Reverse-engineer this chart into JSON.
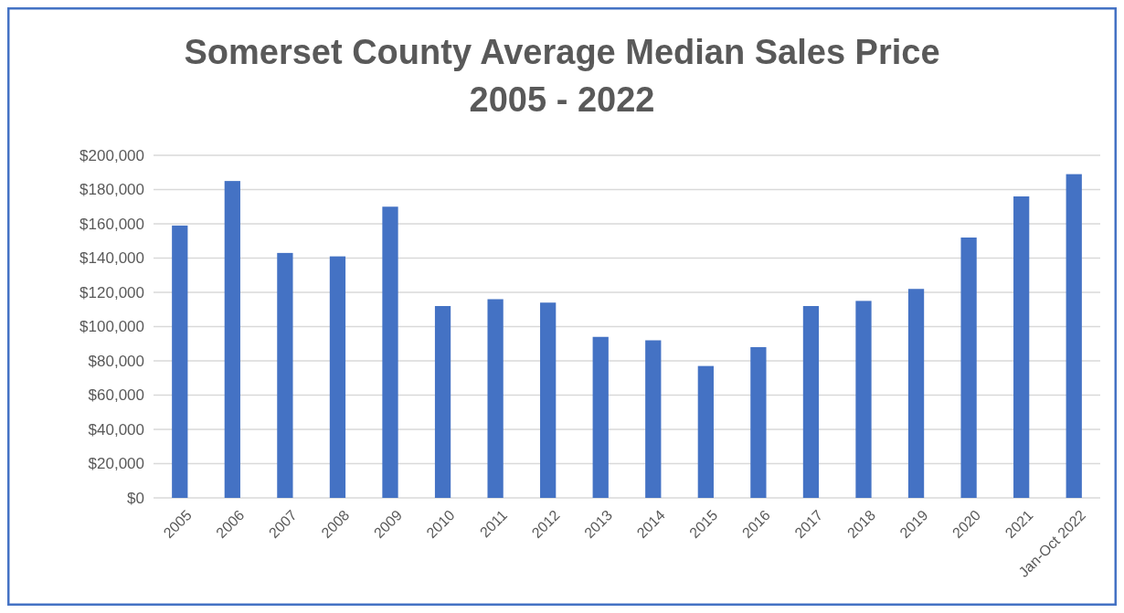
{
  "chart_data": {
    "type": "bar",
    "title": "Somerset County Average Median Sales Price\n2005 - 2022",
    "categories": [
      "2005",
      "2006",
      "2007",
      "2008",
      "2009",
      "2010",
      "2011",
      "2012",
      "2013",
      "2014",
      "2015",
      "2016",
      "2017",
      "2018",
      "2019",
      "2020",
      "2021",
      "Jan-Oct 2022"
    ],
    "values": [
      159000,
      185000,
      143000,
      141000,
      170000,
      112000,
      116000,
      114000,
      94000,
      92000,
      77000,
      88000,
      112000,
      115000,
      122000,
      152000,
      176000,
      189000
    ],
    "color": "#4472c4",
    "ylim": [
      0,
      200000
    ],
    "yticks": [
      {
        "value": 0,
        "label": "$0"
      },
      {
        "value": 20000,
        "label": "$20,000"
      },
      {
        "value": 40000,
        "label": "$40,000"
      },
      {
        "value": 60000,
        "label": "$60,000"
      },
      {
        "value": 80000,
        "label": "$80,000"
      },
      {
        "value": 100000,
        "label": "$100,000"
      },
      {
        "value": 120000,
        "label": "$120,000"
      },
      {
        "value": 140000,
        "label": "$140,000"
      },
      {
        "value": 160000,
        "label": "$160,000"
      },
      {
        "value": 180000,
        "label": "$180,000"
      },
      {
        "value": 200000,
        "label": "$200,000"
      }
    ],
    "grid": "y"
  }
}
